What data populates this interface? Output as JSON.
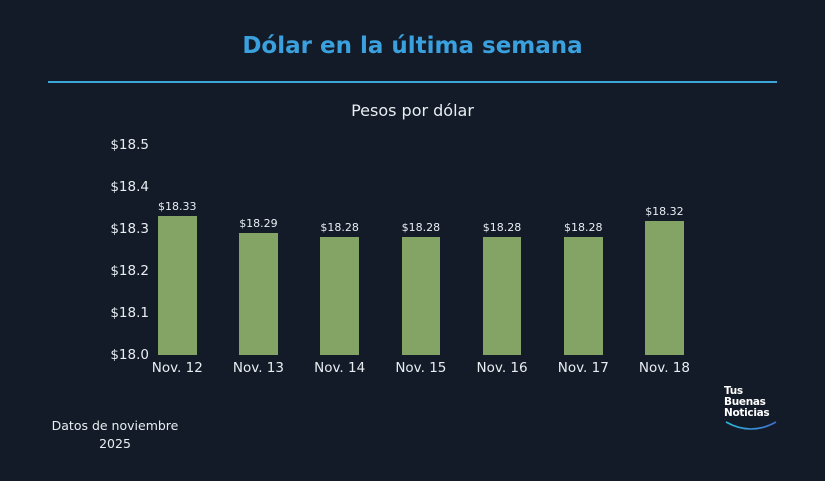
{
  "header": {
    "title": "Dólar en la última semana",
    "accent_color": "#3ba0de"
  },
  "chart_data": {
    "type": "bar",
    "title": "Pesos por dólar",
    "xlabel": "",
    "ylabel": "",
    "categories": [
      "Nov. 12",
      "Nov. 13",
      "Nov. 14",
      "Nov. 15",
      "Nov. 16",
      "Nov. 17",
      "Nov. 18"
    ],
    "values": [
      18.33,
      18.29,
      18.28,
      18.28,
      18.28,
      18.28,
      18.32
    ],
    "value_labels": [
      "$18.33",
      "$18.29",
      "$18.28",
      "$18.28",
      "$18.28",
      "$18.28",
      "$18.32"
    ],
    "y_ticks": [
      "$18.0",
      "$18.1",
      "$18.2",
      "$18.3",
      "$18.4",
      "$18.5"
    ],
    "ylim": [
      18.0,
      18.5
    ],
    "grid": false,
    "legend": null,
    "bar_color": "#83a464"
  },
  "footnote": {
    "line1": "Datos de noviembre",
    "line2": "2025"
  },
  "logo": {
    "line1": "Tus",
    "line2": "Buenas",
    "line3": "Noticias"
  }
}
